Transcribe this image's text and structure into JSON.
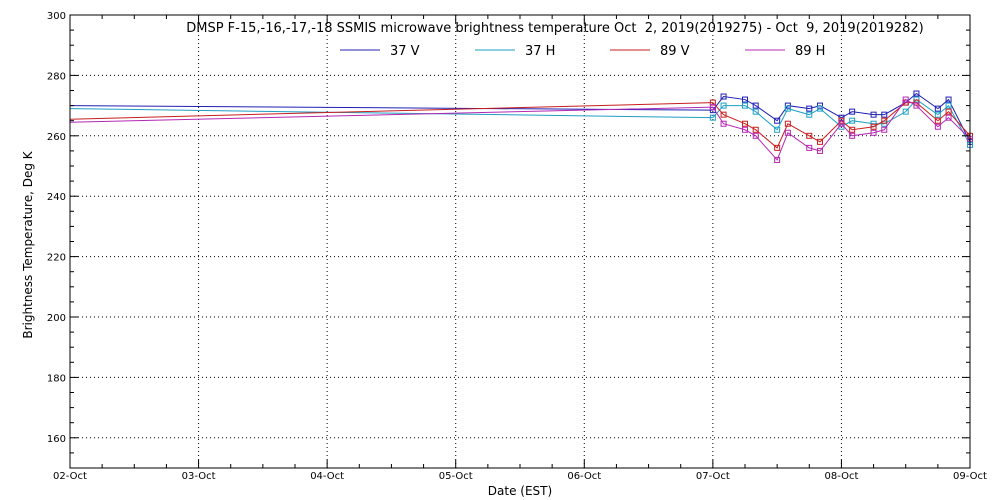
{
  "chart_data": {
    "type": "line",
    "title": "DMSP F-15,-16,-17,-18 SSMIS microwave brightness temperature Oct  2, 2019(2019275) - Oct  9, 2019(2019282)",
    "xlabel": "Date (EST)",
    "ylabel": "Brightness Temperature, Deg K",
    "x_range": [
      "2019-10-02T00:00",
      "2019-10-09T00:00"
    ],
    "x_ticks": [
      {
        "value": "2019-10-02T00:00",
        "label": "02-Oct"
      },
      {
        "value": "2019-10-03T00:00",
        "label": "03-Oct"
      },
      {
        "value": "2019-10-04T00:00",
        "label": "04-Oct"
      },
      {
        "value": "2019-10-05T00:00",
        "label": "05-Oct"
      },
      {
        "value": "2019-10-06T00:00",
        "label": "06-Oct"
      },
      {
        "value": "2019-10-07T00:00",
        "label": "07-Oct"
      },
      {
        "value": "2019-10-08T00:00",
        "label": "08-Oct"
      },
      {
        "value": "2019-10-09T00:00",
        "label": "09-Oct"
      }
    ],
    "ylim": [
      150,
      300
    ],
    "y_ticks": [
      160,
      180,
      200,
      220,
      240,
      260,
      280,
      300
    ],
    "grid": true,
    "legend_position": "top-center",
    "marker": "square",
    "series": [
      {
        "name": "37 V",
        "color": "#1f1fb4",
        "line_points": [
          [
            "2019-10-02T00:00",
            270.0
          ],
          [
            "2019-10-07T00:00",
            268.5
          ]
        ],
        "marker_points": [
          [
            "2019-10-07T00:00",
            268.5
          ],
          [
            "2019-10-07T02:00",
            273.0
          ],
          [
            "2019-10-07T06:00",
            272.0
          ],
          [
            "2019-10-07T08:00",
            270.0
          ],
          [
            "2019-10-07T12:00",
            265.0
          ],
          [
            "2019-10-07T14:00",
            270.0
          ],
          [
            "2019-10-07T18:00",
            269.0
          ],
          [
            "2019-10-07T20:00",
            270.0
          ],
          [
            "2019-10-08T00:00",
            266.0
          ],
          [
            "2019-10-08T02:00",
            268.0
          ],
          [
            "2019-10-08T06:00",
            267.0
          ],
          [
            "2019-10-08T08:00",
            267.0
          ],
          [
            "2019-10-08T12:00",
            271.0
          ],
          [
            "2019-10-08T14:00",
            274.0
          ],
          [
            "2019-10-08T18:00",
            269.0
          ],
          [
            "2019-10-08T20:00",
            272.0
          ],
          [
            "2019-10-09T00:00",
            258.0
          ]
        ]
      },
      {
        "name": "37 H",
        "color": "#1f9fc4",
        "line_points": [
          [
            "2019-10-02T00:00",
            269.0
          ],
          [
            "2019-10-07T00:00",
            266.0
          ]
        ],
        "marker_points": [
          [
            "2019-10-07T00:00",
            266.0
          ],
          [
            "2019-10-07T02:00",
            270.0
          ],
          [
            "2019-10-07T06:00",
            270.0
          ],
          [
            "2019-10-07T08:00",
            268.0
          ],
          [
            "2019-10-07T12:00",
            262.0
          ],
          [
            "2019-10-07T14:00",
            269.0
          ],
          [
            "2019-10-07T18:00",
            267.0
          ],
          [
            "2019-10-07T20:00",
            269.0
          ],
          [
            "2019-10-08T00:00",
            263.0
          ],
          [
            "2019-10-08T02:00",
            265.0
          ],
          [
            "2019-10-08T06:00",
            264.0
          ],
          [
            "2019-10-08T08:00",
            264.0
          ],
          [
            "2019-10-08T12:00",
            268.0
          ],
          [
            "2019-10-08T14:00",
            272.0
          ],
          [
            "2019-10-08T18:00",
            267.0
          ],
          [
            "2019-10-08T20:00",
            270.0
          ],
          [
            "2019-10-09T00:00",
            257.0
          ]
        ]
      },
      {
        "name": "89 V",
        "color": "#c81e1e",
        "line_points": [
          [
            "2019-10-02T00:00",
            265.5
          ],
          [
            "2019-10-07T00:00",
            271.0
          ]
        ],
        "marker_points": [
          [
            "2019-10-07T00:00",
            271.0
          ],
          [
            "2019-10-07T02:00",
            267.0
          ],
          [
            "2019-10-07T06:00",
            264.0
          ],
          [
            "2019-10-07T08:00",
            262.0
          ],
          [
            "2019-10-07T12:00",
            256.0
          ],
          [
            "2019-10-07T14:00",
            264.0
          ],
          [
            "2019-10-07T18:00",
            260.0
          ],
          [
            "2019-10-07T20:00",
            258.0
          ],
          [
            "2019-10-08T00:00",
            265.0
          ],
          [
            "2019-10-08T02:00",
            262.0
          ],
          [
            "2019-10-08T06:00",
            263.0
          ],
          [
            "2019-10-08T08:00",
            265.0
          ],
          [
            "2019-10-08T12:00",
            271.0
          ],
          [
            "2019-10-08T14:00",
            271.0
          ],
          [
            "2019-10-08T18:00",
            265.0
          ],
          [
            "2019-10-08T20:00",
            268.0
          ],
          [
            "2019-10-09T00:00",
            260.0
          ]
        ]
      },
      {
        "name": "89 H",
        "color": "#b428b4",
        "line_points": [
          [
            "2019-10-02T00:00",
            264.5
          ],
          [
            "2019-10-07T00:00",
            269.5
          ]
        ],
        "marker_points": [
          [
            "2019-10-07T00:00",
            269.5
          ],
          [
            "2019-10-07T02:00",
            264.0
          ],
          [
            "2019-10-07T06:00",
            262.0
          ],
          [
            "2019-10-07T08:00",
            260.0
          ],
          [
            "2019-10-07T12:00",
            252.0
          ],
          [
            "2019-10-07T14:00",
            261.0
          ],
          [
            "2019-10-07T18:00",
            256.0
          ],
          [
            "2019-10-07T20:00",
            255.0
          ],
          [
            "2019-10-08T00:00",
            264.0
          ],
          [
            "2019-10-08T02:00",
            260.0
          ],
          [
            "2019-10-08T06:00",
            261.0
          ],
          [
            "2019-10-08T08:00",
            262.0
          ],
          [
            "2019-10-08T12:00",
            272.0
          ],
          [
            "2019-10-08T14:00",
            270.0
          ],
          [
            "2019-10-08T18:00",
            263.0
          ],
          [
            "2019-10-08T20:00",
            266.0
          ],
          [
            "2019-10-09T00:00",
            259.0
          ]
        ]
      }
    ]
  }
}
